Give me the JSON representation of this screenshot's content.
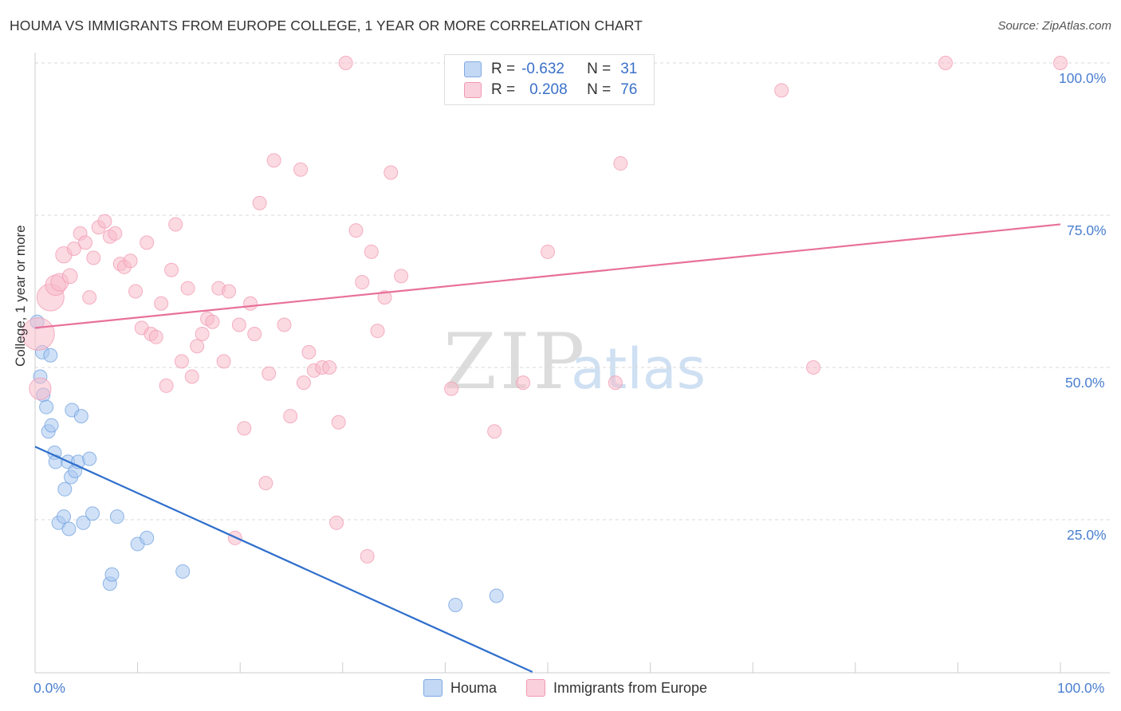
{
  "title": "HOUMA VS IMMIGRANTS FROM EUROPE COLLEGE, 1 YEAR OR MORE CORRELATION CHART",
  "source": "Source: ZipAtlas.com",
  "watermark": {
    "zip": "ZIP",
    "atlas": "atlas"
  },
  "legend": {
    "rows": [
      {
        "r_label": "R =",
        "r_value": "-0.632",
        "n_label": "N =",
        "n_value": "31",
        "color": "#a9c8f0"
      },
      {
        "r_label": "R =",
        "r_value": "0.208",
        "n_label": "N =",
        "n_value": "76",
        "color": "#f7bccb"
      }
    ]
  },
  "bottom_legend": [
    "Houma",
    "Immigrants from Europe"
  ],
  "chart_data": {
    "type": "scatter",
    "ylabel": "College, 1 year or more",
    "xlabel": "",
    "x_tick_labels": [
      "0.0%",
      "100.0%"
    ],
    "y_tick_labels": [
      "100.0%",
      "75.0%",
      "50.0%",
      "25.0%"
    ],
    "xlim": [
      0,
      100
    ],
    "ylim": [
      0,
      100
    ],
    "y_gridlines": [
      100,
      75,
      50,
      25
    ],
    "series": [
      {
        "name": "Houma",
        "color": "#6f9fe0",
        "fill": "#a9c8f0",
        "line_color": "#2f6fcc",
        "trend": {
          "x": [
            0,
            48.5
          ],
          "y": [
            37.0,
            0
          ]
        },
        "points": [
          {
            "x": 0.2,
            "y": 57.5,
            "s": 1
          },
          {
            "x": 0.5,
            "y": 48.5,
            "s": 1
          },
          {
            "x": 0.7,
            "y": 52.5,
            "s": 1
          },
          {
            "x": 0.8,
            "y": 45.5,
            "s": 1
          },
          {
            "x": 1.1,
            "y": 43.5,
            "s": 1
          },
          {
            "x": 1.3,
            "y": 39.5,
            "s": 1
          },
          {
            "x": 1.5,
            "y": 52.0,
            "s": 1
          },
          {
            "x": 1.6,
            "y": 40.5,
            "s": 1
          },
          {
            "x": 1.9,
            "y": 36.0,
            "s": 1
          },
          {
            "x": 2.0,
            "y": 34.5,
            "s": 1
          },
          {
            "x": 2.3,
            "y": 24.5,
            "s": 1
          },
          {
            "x": 2.8,
            "y": 25.5,
            "s": 1
          },
          {
            "x": 2.9,
            "y": 30.0,
            "s": 1
          },
          {
            "x": 3.2,
            "y": 34.5,
            "s": 1
          },
          {
            "x": 3.3,
            "y": 23.5,
            "s": 1
          },
          {
            "x": 3.5,
            "y": 32.0,
            "s": 1
          },
          {
            "x": 3.6,
            "y": 43.0,
            "s": 1
          },
          {
            "x": 3.9,
            "y": 33.0,
            "s": 1
          },
          {
            "x": 4.2,
            "y": 34.5,
            "s": 1
          },
          {
            "x": 4.5,
            "y": 42.0,
            "s": 1
          },
          {
            "x": 4.7,
            "y": 24.5,
            "s": 1
          },
          {
            "x": 5.3,
            "y": 35.0,
            "s": 1
          },
          {
            "x": 5.6,
            "y": 26.0,
            "s": 1
          },
          {
            "x": 7.3,
            "y": 14.5,
            "s": 1
          },
          {
            "x": 7.5,
            "y": 16.0,
            "s": 1
          },
          {
            "x": 8.0,
            "y": 25.5,
            "s": 1
          },
          {
            "x": 10.0,
            "y": 21.0,
            "s": 1
          },
          {
            "x": 10.9,
            "y": 22.0,
            "s": 1
          },
          {
            "x": 14.4,
            "y": 16.5,
            "s": 1
          },
          {
            "x": 41.0,
            "y": 11.0,
            "s": 1
          },
          {
            "x": 45.0,
            "y": 12.5,
            "s": 1
          }
        ]
      },
      {
        "name": "Immigrants from Europe",
        "color": "#f199b2",
        "fill": "#f7bccb",
        "line_color": "#e8709a",
        "trend": {
          "x": [
            0,
            100
          ],
          "y": [
            56.5,
            73.5
          ]
        },
        "points": [
          {
            "x": 0.3,
            "y": 55.5,
            "s": 2.4
          },
          {
            "x": 0.5,
            "y": 46.5,
            "s": 1.6
          },
          {
            "x": 1.5,
            "y": 61.5,
            "s": 2.0
          },
          {
            "x": 2.0,
            "y": 63.5,
            "s": 1.5
          },
          {
            "x": 2.4,
            "y": 64.0,
            "s": 1.3
          },
          {
            "x": 2.8,
            "y": 68.5,
            "s": 1.2
          },
          {
            "x": 3.4,
            "y": 65.0,
            "s": 1.1
          },
          {
            "x": 3.8,
            "y": 69.5,
            "s": 1
          },
          {
            "x": 4.4,
            "y": 72.0,
            "s": 1
          },
          {
            "x": 4.9,
            "y": 70.5,
            "s": 1
          },
          {
            "x": 5.3,
            "y": 61.5,
            "s": 1
          },
          {
            "x": 5.7,
            "y": 68.0,
            "s": 1
          },
          {
            "x": 6.2,
            "y": 73.0,
            "s": 1
          },
          {
            "x": 6.8,
            "y": 74.0,
            "s": 1
          },
          {
            "x": 7.3,
            "y": 71.5,
            "s": 1
          },
          {
            "x": 7.8,
            "y": 72.0,
            "s": 1
          },
          {
            "x": 8.3,
            "y": 67.0,
            "s": 1
          },
          {
            "x": 8.7,
            "y": 66.5,
            "s": 1
          },
          {
            "x": 9.3,
            "y": 67.5,
            "s": 1
          },
          {
            "x": 9.8,
            "y": 62.5,
            "s": 1
          },
          {
            "x": 10.4,
            "y": 56.5,
            "s": 1
          },
          {
            "x": 10.9,
            "y": 70.5,
            "s": 1
          },
          {
            "x": 11.3,
            "y": 55.5,
            "s": 1
          },
          {
            "x": 11.8,
            "y": 55.0,
            "s": 1
          },
          {
            "x": 12.3,
            "y": 60.5,
            "s": 1
          },
          {
            "x": 12.8,
            "y": 47.0,
            "s": 1
          },
          {
            "x": 13.3,
            "y": 66.0,
            "s": 1
          },
          {
            "x": 13.7,
            "y": 73.5,
            "s": 1
          },
          {
            "x": 14.3,
            "y": 51.0,
            "s": 1
          },
          {
            "x": 14.9,
            "y": 63.0,
            "s": 1
          },
          {
            "x": 15.3,
            "y": 48.5,
            "s": 1
          },
          {
            "x": 15.8,
            "y": 53.5,
            "s": 1
          },
          {
            "x": 16.3,
            "y": 55.5,
            "s": 1
          },
          {
            "x": 16.8,
            "y": 58.0,
            "s": 1
          },
          {
            "x": 17.3,
            "y": 57.5,
            "s": 1
          },
          {
            "x": 17.9,
            "y": 63.0,
            "s": 1
          },
          {
            "x": 18.4,
            "y": 51.0,
            "s": 1
          },
          {
            "x": 18.9,
            "y": 62.5,
            "s": 1
          },
          {
            "x": 19.5,
            "y": 22.0,
            "s": 1
          },
          {
            "x": 19.9,
            "y": 57.0,
            "s": 1
          },
          {
            "x": 20.4,
            "y": 40.0,
            "s": 1
          },
          {
            "x": 21.0,
            "y": 60.5,
            "s": 1
          },
          {
            "x": 21.4,
            "y": 55.5,
            "s": 1
          },
          {
            "x": 21.9,
            "y": 77.0,
            "s": 1
          },
          {
            "x": 22.5,
            "y": 31.0,
            "s": 1
          },
          {
            "x": 22.8,
            "y": 49.0,
            "s": 1
          },
          {
            "x": 23.3,
            "y": 84.0,
            "s": 1
          },
          {
            "x": 24.3,
            "y": 57.0,
            "s": 1
          },
          {
            "x": 24.9,
            "y": 42.0,
            "s": 1
          },
          {
            "x": 25.9,
            "y": 82.5,
            "s": 1
          },
          {
            "x": 26.2,
            "y": 47.5,
            "s": 1
          },
          {
            "x": 26.7,
            "y": 52.5,
            "s": 1
          },
          {
            "x": 27.2,
            "y": 49.5,
            "s": 1
          },
          {
            "x": 28.0,
            "y": 50.0,
            "s": 1
          },
          {
            "x": 28.7,
            "y": 50.0,
            "s": 1
          },
          {
            "x": 29.4,
            "y": 24.5,
            "s": 1
          },
          {
            "x": 29.6,
            "y": 41.0,
            "s": 1
          },
          {
            "x": 30.3,
            "y": 100.0,
            "s": 1
          },
          {
            "x": 31.3,
            "y": 72.5,
            "s": 1
          },
          {
            "x": 31.9,
            "y": 64.0,
            "s": 1
          },
          {
            "x": 32.4,
            "y": 19.0,
            "s": 1
          },
          {
            "x": 32.8,
            "y": 69.0,
            "s": 1
          },
          {
            "x": 33.4,
            "y": 56.0,
            "s": 1
          },
          {
            "x": 34.1,
            "y": 61.5,
            "s": 1
          },
          {
            "x": 34.7,
            "y": 82.0,
            "s": 1
          },
          {
            "x": 35.7,
            "y": 65.0,
            "s": 1
          },
          {
            "x": 40.6,
            "y": 46.5,
            "s": 1
          },
          {
            "x": 44.8,
            "y": 39.5,
            "s": 1
          },
          {
            "x": 47.6,
            "y": 47.5,
            "s": 1
          },
          {
            "x": 50.0,
            "y": 69.0,
            "s": 1
          },
          {
            "x": 56.6,
            "y": 47.5,
            "s": 1
          },
          {
            "x": 57.1,
            "y": 83.5,
            "s": 1
          },
          {
            "x": 72.8,
            "y": 95.5,
            "s": 1
          },
          {
            "x": 75.9,
            "y": 50.0,
            "s": 1
          },
          {
            "x": 88.8,
            "y": 100.0,
            "s": 1
          },
          {
            "x": 100.0,
            "y": 100.0,
            "s": 1
          }
        ]
      }
    ]
  }
}
